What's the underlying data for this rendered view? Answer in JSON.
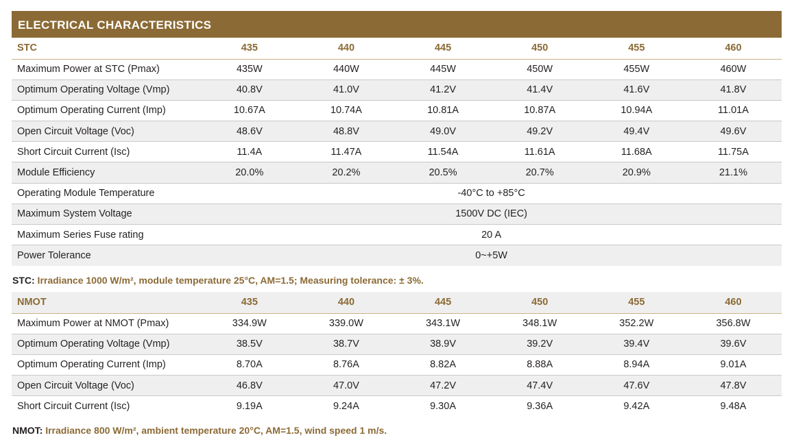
{
  "title": "ELECTRICAL CHARACTERISTICS",
  "stc": {
    "header": [
      "STC",
      "435",
      "440",
      "445",
      "450",
      "455",
      "460"
    ],
    "rows": [
      {
        "label": "Maximum Power at STC (Pmax)",
        "values": [
          "435W",
          "440W",
          "445W",
          "450W",
          "455W",
          "460W"
        ]
      },
      {
        "label": "Optimum Operating Voltage (Vmp)",
        "values": [
          "40.8V",
          "41.0V",
          "41.2V",
          "41.4V",
          "41.6V",
          "41.8V"
        ]
      },
      {
        "label": "Optimum Operating Current (Imp)",
        "values": [
          "10.67A",
          "10.74A",
          "10.81A",
          "10.87A",
          "10.94A",
          "11.01A"
        ]
      },
      {
        "label": "Open Circuit Voltage (Voc)",
        "values": [
          "48.6V",
          "48.8V",
          "49.0V",
          "49.2V",
          "49.4V",
          "49.6V"
        ]
      },
      {
        "label": "Short Circuit Current (Isc)",
        "values": [
          "11.4A",
          "11.47A",
          "11.54A",
          "11.61A",
          "11.68A",
          "11.75A"
        ]
      },
      {
        "label": "Module Efficiency",
        "values": [
          "20.0%",
          "20.2%",
          "20.5%",
          "20.7%",
          "20.9%",
          "21.1%"
        ]
      }
    ],
    "shared_rows": [
      {
        "label": "Operating Module Temperature",
        "value": "-40°C to +85°C"
      },
      {
        "label": "Maximum System Voltage",
        "value": "1500V DC (IEC)"
      },
      {
        "label": "Maximum Series Fuse rating",
        "value": "20 A"
      },
      {
        "label": "Power Tolerance",
        "value": "0~+5W"
      }
    ],
    "note_key": "STC:",
    "note_text": " Irradiance 1000 W/m², module temperature 25°C, AM=1.5; Measuring tolerance: ± 3%."
  },
  "nmot": {
    "header": [
      "NMOT",
      "435",
      "440",
      "445",
      "450",
      "455",
      "460"
    ],
    "rows": [
      {
        "label": "Maximum Power at NMOT (Pmax)",
        "values": [
          "334.9W",
          "339.0W",
          "343.1W",
          "348.1W",
          "352.2W",
          "356.8W"
        ]
      },
      {
        "label": "Optimum Operating Voltage (Vmp)",
        "values": [
          "38.5V",
          "38.7V",
          "38.9V",
          "39.2V",
          "39.4V",
          "39.6V"
        ]
      },
      {
        "label": "Optimum Operating Current (Imp)",
        "values": [
          "8.70A",
          "8.76A",
          "8.82A",
          "8.88A",
          "8.94A",
          "9.01A"
        ]
      },
      {
        "label": "Open Circuit Voltage (Voc)",
        "values": [
          "46.8V",
          "47.0V",
          "47.2V",
          "47.4V",
          "47.6V",
          "47.8V"
        ]
      },
      {
        "label": "Short Circuit Current (Isc)",
        "values": [
          "9.19A",
          "9.24A",
          "9.30A",
          "9.36A",
          "9.42A",
          "9.48A"
        ]
      }
    ],
    "note_key": "NMOT:",
    "note_text": " Irradiance 800 W/m², ambient temperature 20°C, AM=1.5, wind speed 1 m/s."
  },
  "colors": {
    "accent": "#8b6a35",
    "stripe": "#efefef",
    "text": "#231f20"
  }
}
